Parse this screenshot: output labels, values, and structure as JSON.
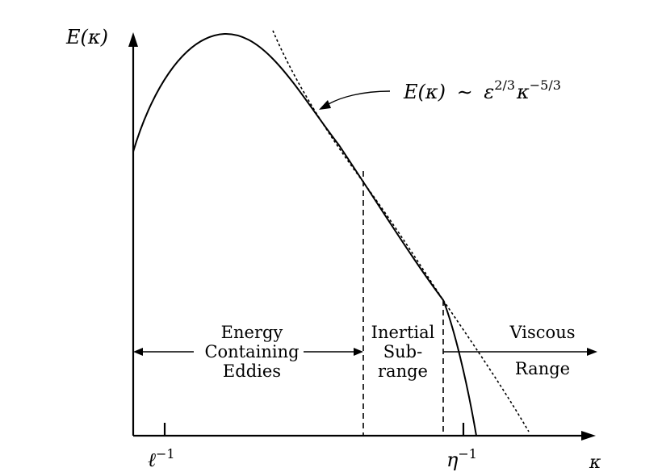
{
  "y_axis_label": "E(κ)",
  "x_axis_label": "κ",
  "power_law": {
    "lhs": "E(κ)",
    "sim": "∼",
    "eps": "ε",
    "eps_exp": "2/3",
    "kappa": "κ",
    "kappa_exp": "−5/3"
  },
  "regions": {
    "energy": [
      "Energy",
      "Containing",
      "Eddies"
    ],
    "inertial": [
      "Inertial",
      "Sub-",
      "range"
    ],
    "viscous": [
      "Viscous",
      "Range"
    ]
  },
  "x_ticks": {
    "integral": {
      "base": "ℓ",
      "exp": "−1"
    },
    "kolmogorov": {
      "base": "η",
      "exp": "−1"
    }
  }
}
